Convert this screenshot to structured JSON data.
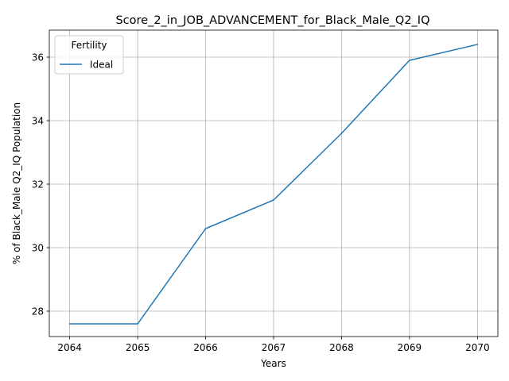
{
  "chart_data": {
    "type": "line",
    "title": "Score_2_in_JOB_ADVANCEMENT_for_Black_Male_Q2_IQ",
    "xlabel": "Years",
    "ylabel": "% of Black_Male Q2_IQ Population",
    "x": [
      2064,
      2065,
      2066,
      2067,
      2068,
      2069,
      2070
    ],
    "x_ticks": [
      "2064",
      "2065",
      "2066",
      "2067",
      "2068",
      "2069",
      "2070"
    ],
    "y_ticks": [
      "28",
      "30",
      "32",
      "34",
      "36"
    ],
    "y_tick_values": [
      28,
      30,
      32,
      34,
      36
    ],
    "xlim": [
      2063.7,
      2070.3
    ],
    "ylim": [
      27.2,
      36.85
    ],
    "grid": true,
    "legend": {
      "title": "Fertility",
      "placement": "top-left"
    },
    "series": [
      {
        "name": "Ideal",
        "color": "#1f77b4",
        "values": [
          27.6,
          27.6,
          30.6,
          31.5,
          33.6,
          35.9,
          36.4
        ]
      }
    ]
  }
}
